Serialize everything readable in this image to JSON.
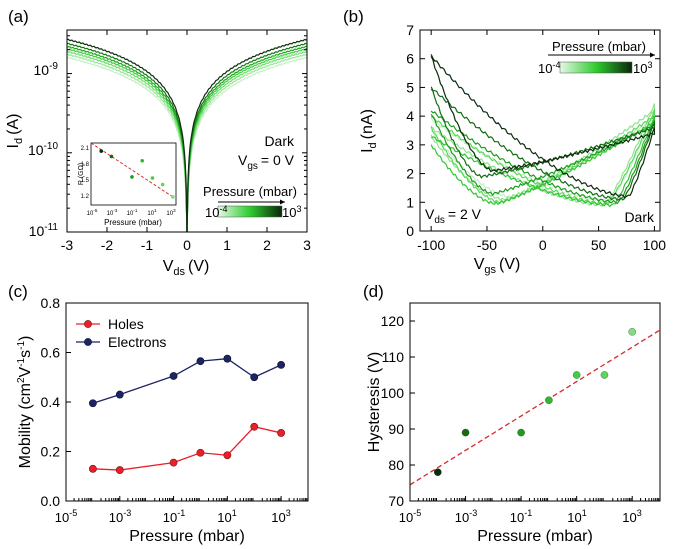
{
  "chart_data": [
    {
      "panel": "(a)",
      "type": "line",
      "title": "",
      "xlabel": "V",
      "xlabel_sub": "ds",
      "xlabel_unit": "(V)",
      "ylabel": "I",
      "ylabel_sub": "d",
      "ylabel_unit": "(A)",
      "xlim": [
        -3,
        3
      ],
      "ylim_log10": [
        -11,
        -8.45
      ],
      "xticks": [
        -3,
        -2,
        -1,
        0,
        1,
        2,
        3
      ],
      "xtick_labels": [
        "-3",
        "-2",
        "-1",
        "0",
        "1",
        "2",
        "3"
      ],
      "ytick_labels": [
        {
          "base": "10",
          "exp": "-11"
        },
        {
          "base": "10",
          "exp": "-10"
        },
        {
          "base": "10",
          "exp": "-9"
        }
      ],
      "annotations": [
        "Dark",
        "V",
        "gs",
        "= 0 V"
      ],
      "colorbar": {
        "title": "Pressure (mbar)",
        "low": {
          "base": "10",
          "exp": "-4"
        },
        "high": {
          "base": "10",
          "exp": "3"
        }
      },
      "series": [
        {
          "name": "1e-4 mbar",
          "color": "#c4f0c4",
          "amplitude_A": 1.6e-09
        },
        {
          "name": "1e-3 mbar",
          "color": "#99e699",
          "amplitude_A": 1.75e-09
        },
        {
          "name": "1e-1 mbar",
          "color": "#6fdb6f",
          "amplitude_A": 1.9e-09
        },
        {
          "name": "1 mbar",
          "color": "#3fcf3f",
          "amplitude_A": 2.05e-09
        },
        {
          "name": "10 mbar",
          "color": "#1fa81f",
          "amplitude_A": 2.2e-09
        },
        {
          "name": "100 mbar",
          "color": "#137a13",
          "amplitude_A": 2.4e-09
        },
        {
          "name": "1000 mbar",
          "color": "#0d2e0d",
          "amplitude_A": 2.7e-09
        }
      ],
      "inset": {
        "ylabel": "R (GΩ)",
        "xlabel": "Pressure (mbar)",
        "yticks": [
          "1.2",
          "1.5",
          "1.8",
          "2.1"
        ],
        "xticks": [
          {
            "base": "10",
            "exp": "-5"
          },
          {
            "base": "10",
            "exp": "-3"
          },
          {
            "base": "10",
            "exp": "-1"
          },
          {
            "base": "10",
            "exp": "1"
          },
          {
            "base": "10",
            "exp": "3"
          }
        ],
        "points": [
          {
            "x": 0.0001,
            "y": 2.1
          },
          {
            "x": 0.001,
            "y": 2.0
          },
          {
            "x": 0.1,
            "y": 1.62
          },
          {
            "x": 1,
            "y": 1.92
          },
          {
            "x": 10,
            "y": 1.6
          },
          {
            "x": 100,
            "y": 1.48
          },
          {
            "x": 1000,
            "y": 1.25
          }
        ],
        "fit": {
          "from": [
            1e-05,
            2.25
          ],
          "to": [
            1000,
            1.25
          ]
        }
      }
    },
    {
      "panel": "(b)",
      "type": "line",
      "xlabel": "V",
      "xlabel_sub": "gs",
      "xlabel_unit": "(V)",
      "ylabel": "I",
      "ylabel_sub": "d",
      "ylabel_unit": "(nA)",
      "xlim": [
        -110,
        105
      ],
      "ylim": [
        0,
        7
      ],
      "xticks": [
        -100,
        -50,
        0,
        50,
        100
      ],
      "xtick_labels": [
        "-100",
        "-50",
        "0",
        "50",
        "100"
      ],
      "yticks": [
        0,
        1,
        2,
        3,
        4,
        5,
        6,
        7
      ],
      "ytick_labels": [
        "0",
        "1",
        "2",
        "3",
        "4",
        "5",
        "6",
        "7"
      ],
      "annotations": [
        "V",
        "ds",
        "= 2 V",
        "Dark"
      ],
      "colorbar": {
        "title": "Pressure (mbar)",
        "low": {
          "base": "10",
          "exp": "-4"
        },
        "high": {
          "base": "10",
          "exp": "3"
        }
      },
      "series": [
        {
          "name": "1e-4 mbar",
          "color": "#c4f0c4",
          "fwd_min": [
            -30,
            1.2
          ],
          "start": 3.5,
          "end": 3.9,
          "bwd_min": [
            60,
            1.05
          ],
          "peak": 3.9
        },
        {
          "name": "1e-3 mbar",
          "color": "#8fe38f",
          "fwd_min": [
            -35,
            1.1
          ],
          "start": 3.3,
          "end": 4.2,
          "bwd_min": [
            55,
            0.9
          ],
          "peak": 3.6
        },
        {
          "name": "1e-1 mbar",
          "color": "#5ed65e",
          "fwd_min": [
            -38,
            1.0
          ],
          "start": 3.6,
          "end": 4.0,
          "bwd_min": [
            58,
            0.95
          ],
          "peak": 4.0
        },
        {
          "name": "1 mbar",
          "color": "#33c433",
          "fwd_min": [
            -42,
            0.95
          ],
          "start": 3.0,
          "end": 3.8,
          "bwd_min": [
            63,
            0.9
          ],
          "peak": 3.3
        },
        {
          "name": "10 mbar",
          "color": "#1e9b1e",
          "fwd_min": [
            -45,
            1.3
          ],
          "start": 4.1,
          "end": 3.7,
          "bwd_min": [
            68,
            1.0
          ],
          "peak": 4.2
        },
        {
          "name": "100 mbar",
          "color": "#136b13",
          "fwd_min": [
            -55,
            1.9
          ],
          "start": 5.0,
          "end": 3.6,
          "bwd_min": [
            72,
            1.1
          ],
          "peak": 5.0
        },
        {
          "name": "1000 mbar",
          "color": "#0c2b0c",
          "fwd_min": [
            -45,
            2.1
          ],
          "start": 6.1,
          "end": 3.4,
          "bwd_min": [
            77,
            1.2
          ],
          "peak": 6.1
        }
      ]
    },
    {
      "panel": "(c)",
      "type": "line",
      "xlabel": "Pressure (mbar)",
      "ylabel": "Mobility (cm",
      "ylabel_sup1": "2",
      "ylabel_mid": "V",
      "ylabel_sup2": "-1",
      "ylabel_mid2": "s",
      "ylabel_sup3": "-1",
      "ylabel_end": ")",
      "xscale": "log",
      "xlim_log10": [
        -5,
        4
      ],
      "ylim": [
        0,
        0.8
      ],
      "xticks": [
        {
          "base": "10",
          "exp": "-5"
        },
        {
          "base": "10",
          "exp": "-3"
        },
        {
          "base": "10",
          "exp": "-1"
        },
        {
          "base": "10",
          "exp": "1"
        },
        {
          "base": "10",
          "exp": "3"
        }
      ],
      "yticks": [
        0,
        0.2,
        0.4,
        0.6,
        0.8
      ],
      "ytick_labels": [
        "0.0",
        "0.2",
        "0.4",
        "0.6",
        "0.8"
      ],
      "x": [
        0.0001,
        0.001,
        0.1,
        1,
        10,
        100,
        1000
      ],
      "series": [
        {
          "name": "Holes",
          "color": "#e8202a",
          "values": [
            0.13,
            0.125,
            0.155,
            0.195,
            0.185,
            0.3,
            0.275
          ]
        },
        {
          "name": "Electrons",
          "color": "#1c2466",
          "values": [
            0.395,
            0.43,
            0.505,
            0.565,
            0.575,
            0.5,
            0.55
          ]
        }
      ],
      "legend_position": "top-left"
    },
    {
      "panel": "(d)",
      "type": "scatter",
      "xlabel": "Pressure (mbar)",
      "ylabel": "Hysteresis (V)",
      "xscale": "log",
      "xlim_log10": [
        -5,
        4
      ],
      "ylim": [
        70,
        125
      ],
      "xticks": [
        {
          "base": "10",
          "exp": "-5"
        },
        {
          "base": "10",
          "exp": "-3"
        },
        {
          "base": "10",
          "exp": "-1"
        },
        {
          "base": "10",
          "exp": "1"
        },
        {
          "base": "10",
          "exp": "3"
        }
      ],
      "yticks": [
        70,
        80,
        90,
        100,
        110,
        120
      ],
      "ytick_labels": [
        "70",
        "80",
        "90",
        "100",
        "110",
        "120"
      ],
      "points": [
        {
          "x": 0.0001,
          "y": 78,
          "color": "#0c2b0c"
        },
        {
          "x": 0.001,
          "y": 89,
          "color": "#136b13"
        },
        {
          "x": 0.1,
          "y": 89,
          "color": "#1e9b1e"
        },
        {
          "x": 1,
          "y": 98,
          "color": "#2fb82f"
        },
        {
          "x": 10,
          "y": 105,
          "color": "#3fcf3f"
        },
        {
          "x": 100,
          "y": 105,
          "color": "#5ed65e"
        },
        {
          "x": 1000,
          "y": 117,
          "color": "#7ee07e"
        }
      ],
      "fit": {
        "color": "#d62828",
        "from": [
          1e-05,
          74.5
        ],
        "to": [
          10000,
          117.5
        ]
      }
    }
  ],
  "panel_labels": [
    "(a)",
    "(b)",
    "(c)",
    "(d)"
  ]
}
